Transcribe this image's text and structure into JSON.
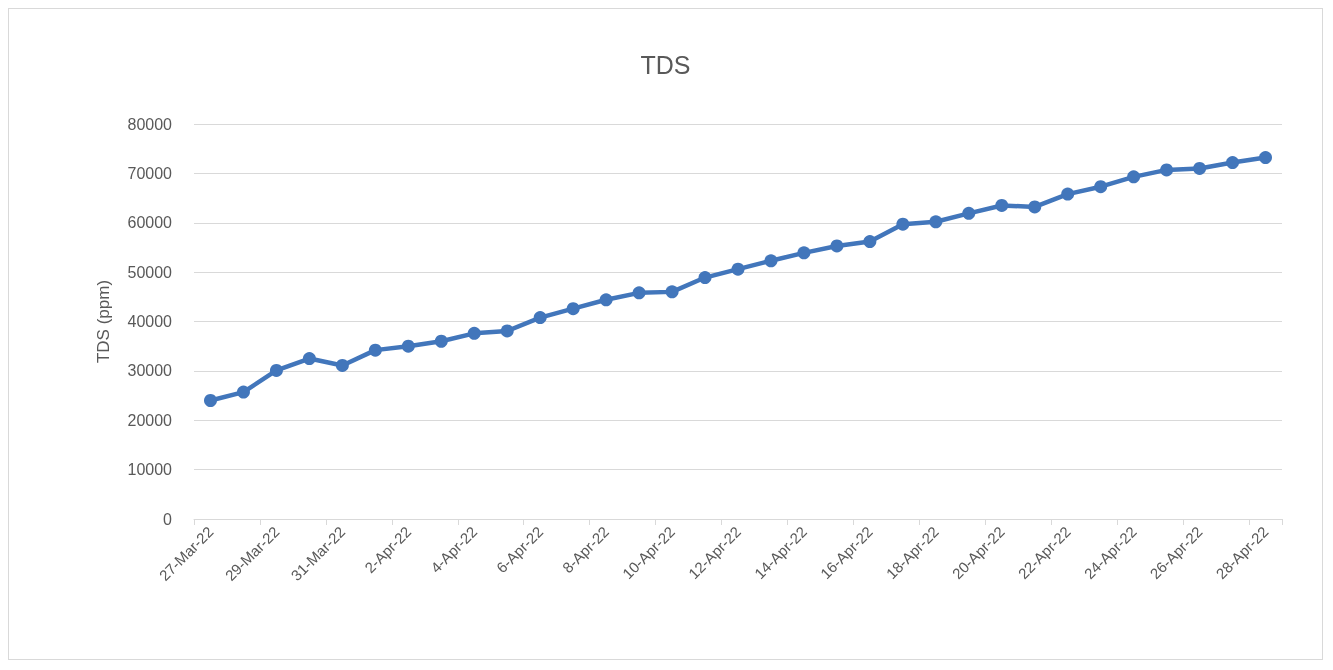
{
  "chart_data": {
    "type": "line",
    "title": "TDS",
    "ylabel": "TDS (ppm)",
    "categories": [
      "27-Mar-22",
      null,
      "29-Mar-22",
      null,
      "31-Mar-22",
      null,
      "2-Apr-22",
      null,
      "4-Apr-22",
      null,
      "6-Apr-22",
      null,
      "8-Apr-22",
      null,
      "10-Apr-22",
      null,
      "12-Apr-22",
      null,
      "14-Apr-22",
      null,
      "16-Apr-22",
      null,
      "18-Apr-22",
      null,
      "20-Apr-22",
      null,
      "22-Apr-22",
      null,
      "24-Apr-22",
      null,
      "26-Apr-22",
      null,
      "28-Apr-22"
    ],
    "series": [
      {
        "color": "#4276bb",
        "values": [
          24000,
          25700,
          30100,
          32500,
          31100,
          34200,
          35000,
          36000,
          37600,
          38100,
          40800,
          42600,
          44400,
          45800,
          46000,
          48900,
          50600,
          52300,
          53900,
          55300,
          56200,
          59700,
          60200,
          61900,
          63500,
          63200,
          65800,
          67300,
          69300,
          70700,
          71000,
          72200,
          73200
        ]
      }
    ],
    "ylim": [
      0,
      80000
    ],
    "yticks": [
      0,
      10000,
      20000,
      30000,
      40000,
      50000,
      60000,
      70000,
      80000
    ],
    "grid": "y",
    "marker": "circle",
    "line_style": "solid"
  }
}
